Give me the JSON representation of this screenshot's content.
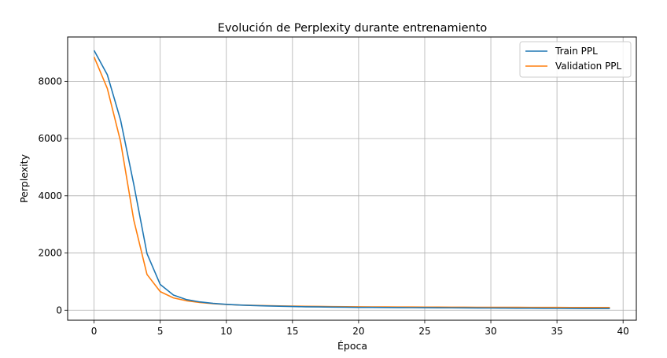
{
  "chart_data": {
    "type": "line",
    "title": "Evolución de Perplexity durante entrenamiento",
    "xlabel": "Época",
    "ylabel": "Perplexity",
    "xlim": [
      -2,
      41
    ],
    "ylim": [
      -350,
      9550
    ],
    "xticks": [
      0,
      5,
      10,
      15,
      20,
      25,
      30,
      35,
      40
    ],
    "yticks": [
      0,
      2000,
      4000,
      6000,
      8000
    ],
    "grid": true,
    "legend_position": "top-right",
    "x": [
      0,
      1,
      2,
      3,
      4,
      5,
      6,
      7,
      8,
      9,
      10,
      11,
      12,
      13,
      14,
      15,
      16,
      17,
      18,
      19,
      20,
      21,
      22,
      23,
      24,
      25,
      26,
      27,
      28,
      29,
      30,
      31,
      32,
      33,
      34,
      35,
      36,
      37,
      38,
      39
    ],
    "series": [
      {
        "name": "Train PPL",
        "color": "#1f77b4",
        "values": [
          9080,
          8230,
          6650,
          4400,
          1980,
          900,
          530,
          370,
          290,
          240,
          205,
          180,
          165,
          150,
          140,
          130,
          120,
          115,
          110,
          105,
          100,
          98,
          95,
          92,
          90,
          88,
          85,
          83,
          80,
          78,
          76,
          74,
          72,
          70,
          68,
          66,
          64,
          62,
          61,
          60
        ]
      },
      {
        "name": "Validation PPL",
        "color": "#ff7f0e",
        "values": [
          8850,
          7750,
          5900,
          3150,
          1250,
          650,
          430,
          330,
          270,
          230,
          200,
          182,
          170,
          160,
          152,
          145,
          138,
          132,
          127,
          123,
          120,
          117,
          115,
          113,
          112,
          110,
          108,
          107,
          105,
          104,
          103,
          102,
          101,
          100,
          99,
          98,
          97,
          96,
          96,
          95
        ]
      }
    ]
  }
}
